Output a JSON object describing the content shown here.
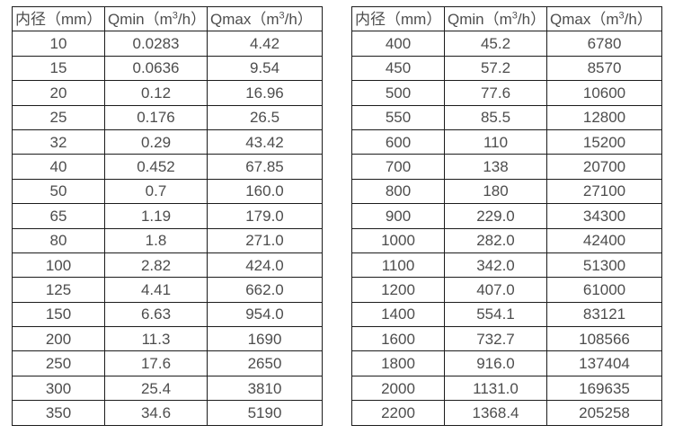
{
  "colors": {
    "background": "#ffffff",
    "border": "#1c1c1c",
    "text": "#4d4d4d"
  },
  "header": {
    "diameter": "内径（mm）",
    "qmin_prefix": "Qmin（m",
    "qmax_prefix": "Qmax（m",
    "sup": "3",
    "unit_suffix": "/h）"
  },
  "tables": [
    {
      "name": "small-diameters",
      "rows": [
        [
          "10",
          "0.0283",
          "4.42"
        ],
        [
          "15",
          "0.0636",
          "9.54"
        ],
        [
          "20",
          "0.12",
          "16.96"
        ],
        [
          "25",
          "0.176",
          "26.5"
        ],
        [
          "32",
          "0.29",
          "43.42"
        ],
        [
          "40",
          "0.452",
          "67.85"
        ],
        [
          "50",
          "0.7",
          "160.0"
        ],
        [
          "65",
          "1.19",
          "179.0"
        ],
        [
          "80",
          "1.8",
          "271.0"
        ],
        [
          "100",
          "2.82",
          "424.0"
        ],
        [
          "125",
          "4.41",
          "662.0"
        ],
        [
          "150",
          "6.63",
          "954.0"
        ],
        [
          "200",
          "11.3",
          "1690"
        ],
        [
          "250",
          "17.6",
          "2650"
        ],
        [
          "300",
          "25.4",
          "3810"
        ],
        [
          "350",
          "34.6",
          "5190"
        ]
      ]
    },
    {
      "name": "large-diameters",
      "rows": [
        [
          "400",
          "45.2",
          "6780"
        ],
        [
          "450",
          "57.2",
          "8570"
        ],
        [
          "500",
          "77.6",
          "10600"
        ],
        [
          "550",
          "85.5",
          "12800"
        ],
        [
          "600",
          "110",
          "15200"
        ],
        [
          "700",
          "138",
          "20700"
        ],
        [
          "800",
          "180",
          "27100"
        ],
        [
          "900",
          "229.0",
          "34300"
        ],
        [
          "1000",
          "282.0",
          "42400"
        ],
        [
          "1100",
          "342.0",
          "51300"
        ],
        [
          "1200",
          "407.0",
          "61000"
        ],
        [
          "1400",
          "554.1",
          "83121"
        ],
        [
          "1600",
          "732.7",
          "108566"
        ],
        [
          "1800",
          "916.0",
          "137404"
        ],
        [
          "2000",
          "1131.0",
          "169635"
        ],
        [
          "2200",
          "1368.4",
          "205258"
        ]
      ]
    }
  ]
}
